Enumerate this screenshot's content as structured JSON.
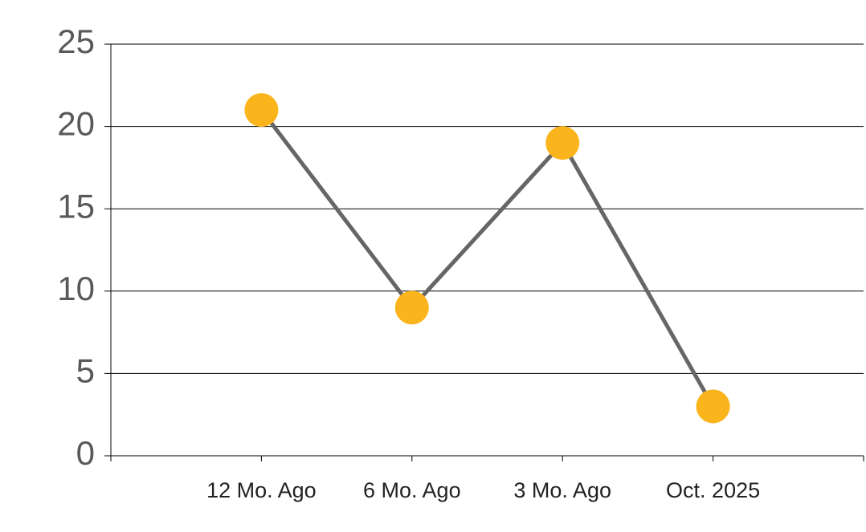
{
  "chart_data": {
    "type": "line",
    "categories": [
      "12 Mo. Ago",
      "6 Mo. Ago",
      "3 Mo. Ago",
      "Oct. 2025"
    ],
    "values": [
      21,
      9,
      19,
      3
    ],
    "color": "#666666",
    "marker_color": "#fbb41c",
    "ylim": [
      0,
      25
    ],
    "yticks": [
      0,
      5,
      10,
      15,
      20,
      25
    ],
    "grid": true
  }
}
